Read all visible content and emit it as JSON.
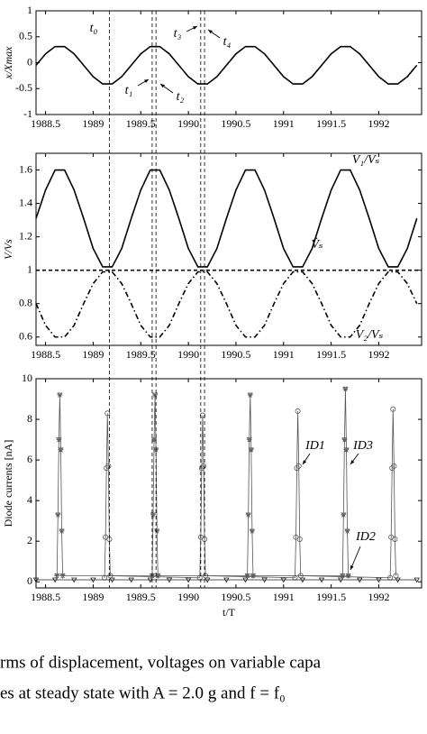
{
  "chart_data": [
    {
      "type": "line",
      "ylabel": "x/Xmax",
      "xlim": [
        1988.4,
        1992.45
      ],
      "xticks": [
        1988.5,
        1989,
        1989.5,
        1990,
        1990.5,
        1991,
        1991.5,
        1992
      ],
      "ylim": [
        -1,
        1
      ],
      "yticks": [
        -1,
        -0.5,
        0,
        0.5,
        1
      ],
      "x": [
        1988.4,
        1988.5,
        1988.6,
        1988.7,
        1988.8,
        1988.9,
        1989,
        1989.1,
        1989.2,
        1989.3,
        1989.4,
        1989.5,
        1989.6,
        1989.7,
        1989.8,
        1989.9,
        1990,
        1990.1,
        1990.2,
        1990.3,
        1990.4,
        1990.5,
        1990.6,
        1990.7,
        1990.8,
        1990.9,
        1991,
        1991.1,
        1991.2,
        1991.3,
        1991.4,
        1991.5,
        1991.6,
        1991.7,
        1991.8,
        1991.9,
        1992,
        1992.1,
        1992.2,
        1992.3,
        1992.4
      ],
      "series": [
        {
          "color": "#000000",
          "linestyle": "solid",
          "values": [
            -0.05,
            0.17,
            0.31,
            0.31,
            0.17,
            -0.05,
            -0.27,
            -0.41,
            -0.41,
            -0.27,
            -0.05,
            0.17,
            0.31,
            0.31,
            0.17,
            -0.05,
            -0.27,
            -0.41,
            -0.41,
            -0.27,
            -0.05,
            0.17,
            0.31,
            0.31,
            0.17,
            -0.05,
            -0.27,
            -0.41,
            -0.41,
            -0.27,
            -0.05,
            0.17,
            0.31,
            0.31,
            0.17,
            -0.05,
            -0.27,
            -0.41,
            -0.41,
            -0.27,
            -0.05
          ]
        }
      ],
      "vlines": [
        1989.17,
        1989.62,
        1989.66,
        1990.13,
        1990.17
      ],
      "annotations": [
        "t₀",
        "t₁",
        "t₂",
        "t₃",
        "t₄"
      ]
    },
    {
      "type": "line",
      "ylabel": "V/Vs",
      "xlim": [
        1988.4,
        1992.45
      ],
      "xticks": [
        1988.5,
        1989,
        1989.5,
        1990,
        1990.5,
        1991,
        1991.5,
        1992
      ],
      "ylim": [
        0.55,
        1.7
      ],
      "yticks": [
        0.6,
        0.8,
        1,
        1.2,
        1.4,
        1.6
      ],
      "x": [
        1988.4,
        1988.5,
        1988.6,
        1988.7,
        1988.8,
        1988.9,
        1989,
        1989.1,
        1989.2,
        1989.3,
        1989.4,
        1989.5,
        1989.6,
        1989.7,
        1989.8,
        1989.9,
        1990,
        1990.1,
        1990.2,
        1990.3,
        1990.4,
        1990.5,
        1990.6,
        1990.7,
        1990.8,
        1990.9,
        1991,
        1991.1,
        1991.2,
        1991.3,
        1991.4,
        1991.5,
        1991.6,
        1991.7,
        1991.8,
        1991.9,
        1992,
        1992.1,
        1992.2,
        1992.3,
        1992.4
      ],
      "series": [
        {
          "name": "V₁/Vₛ",
          "color": "#000000",
          "linestyle": "solid",
          "values": [
            1.31,
            1.48,
            1.6,
            1.6,
            1.48,
            1.31,
            1.13,
            1.02,
            1.02,
            1.13,
            1.31,
            1.48,
            1.6,
            1.6,
            1.48,
            1.31,
            1.13,
            1.02,
            1.02,
            1.13,
            1.31,
            1.48,
            1.6,
            1.6,
            1.48,
            1.31,
            1.13,
            1.02,
            1.02,
            1.13,
            1.31,
            1.48,
            1.6,
            1.6,
            1.48,
            1.31,
            1.13,
            1.02,
            1.02,
            1.13,
            1.31
          ]
        },
        {
          "name": "V̂ₛ",
          "color": "#000000",
          "linestyle": "dashed",
          "x": [
            1988.4,
            1992.45
          ],
          "values": [
            1,
            1
          ]
        },
        {
          "name": "V₂/Vₛ",
          "color": "#000000",
          "linestyle": "dashdot",
          "values": [
            0.8,
            0.67,
            0.6,
            0.6,
            0.67,
            0.8,
            0.92,
            0.99,
            0.99,
            0.92,
            0.8,
            0.67,
            0.6,
            0.6,
            0.67,
            0.8,
            0.92,
            0.99,
            0.99,
            0.92,
            0.8,
            0.67,
            0.6,
            0.6,
            0.67,
            0.8,
            0.92,
            0.99,
            0.99,
            0.92,
            0.8,
            0.67,
            0.6,
            0.6,
            0.67,
            0.8,
            0.92,
            0.99,
            0.99,
            0.92,
            0.8
          ]
        }
      ]
    },
    {
      "type": "line",
      "ylabel": "Diode currents [nA]",
      "xlabel": "t/T",
      "xlim": [
        1988.4,
        1992.45
      ],
      "xticks": [
        1988.5,
        1989,
        1989.5,
        1990,
        1990.5,
        1991,
        1991.5,
        1992
      ],
      "ylim": [
        -0.3,
        10
      ],
      "yticks": [
        0,
        2,
        4,
        6,
        8,
        10
      ],
      "series": [
        {
          "name": "ID1",
          "color": "#555555",
          "linestyle": "solid",
          "marker": "circle",
          "x": [
            1989.12,
            1989.13,
            1989.14,
            1989.15,
            1989.16,
            1989.17,
            1989.18,
            1990.12,
            1990.13,
            1990.14,
            1990.15,
            1990.16,
            1990.17,
            1990.18,
            1991.12,
            1991.13,
            1991.14,
            1991.15,
            1991.16,
            1991.17,
            1991.18,
            1992.12,
            1992.13,
            1992.14,
            1992.15,
            1992.16,
            1992.17,
            1992.18
          ],
          "values": [
            0.2,
            2.2,
            5.6,
            8.3,
            5.7,
            2.1,
            0.3,
            0.2,
            2.2,
            5.6,
            8.2,
            5.7,
            2.1,
            0.3,
            0.2,
            2.2,
            5.6,
            8.4,
            5.7,
            2.1,
            0.3,
            0.2,
            2.2,
            5.6,
            8.5,
            5.7,
            2.1,
            0.3
          ]
        },
        {
          "name": "ID2",
          "color": "#222222",
          "linestyle": "solid",
          "marker": "triangle",
          "x": [
            1988.4,
            1988.6,
            1988.8,
            1989,
            1989.2,
            1989.4,
            1989.6,
            1989.8,
            1990,
            1990.2,
            1990.4,
            1990.6,
            1990.8,
            1991,
            1991.2,
            1991.4,
            1991.6,
            1991.8,
            1992,
            1992.2,
            1992.4
          ],
          "values": [
            0.1,
            0.1,
            0.1,
            0.1,
            0.1,
            0.1,
            0.1,
            0.1,
            0.1,
            0.1,
            0.1,
            0.1,
            0.1,
            0.1,
            0.1,
            0.1,
            0.1,
            0.1,
            0.1,
            0.1,
            0.1
          ]
        },
        {
          "name": "ID3",
          "color": "#555555",
          "linestyle": "solid",
          "marker": "star",
          "x": [
            1988.62,
            1988.63,
            1988.64,
            1988.65,
            1988.66,
            1988.67,
            1988.68,
            1989.62,
            1989.63,
            1989.64,
            1989.65,
            1989.66,
            1989.67,
            1989.68,
            1990.62,
            1990.63,
            1990.64,
            1990.65,
            1990.66,
            1990.67,
            1990.68,
            1991.62,
            1991.63,
            1991.64,
            1991.65,
            1991.66,
            1991.67,
            1991.68
          ],
          "values": [
            0.3,
            3.3,
            7,
            9.2,
            6.5,
            2.5,
            0.3,
            0.3,
            3.3,
            7,
            9.2,
            6.5,
            2.5,
            0.3,
            0.3,
            3.3,
            7,
            9.2,
            6.5,
            2.5,
            0.3,
            0.3,
            3.3,
            7,
            9.5,
            6.5,
            2.5,
            0.3
          ]
        }
      ]
    }
  ],
  "caption": [
    "rms of displacement, voltages on variable capa",
    "es at steady state with A = 2.0 g and f = f₀"
  ]
}
